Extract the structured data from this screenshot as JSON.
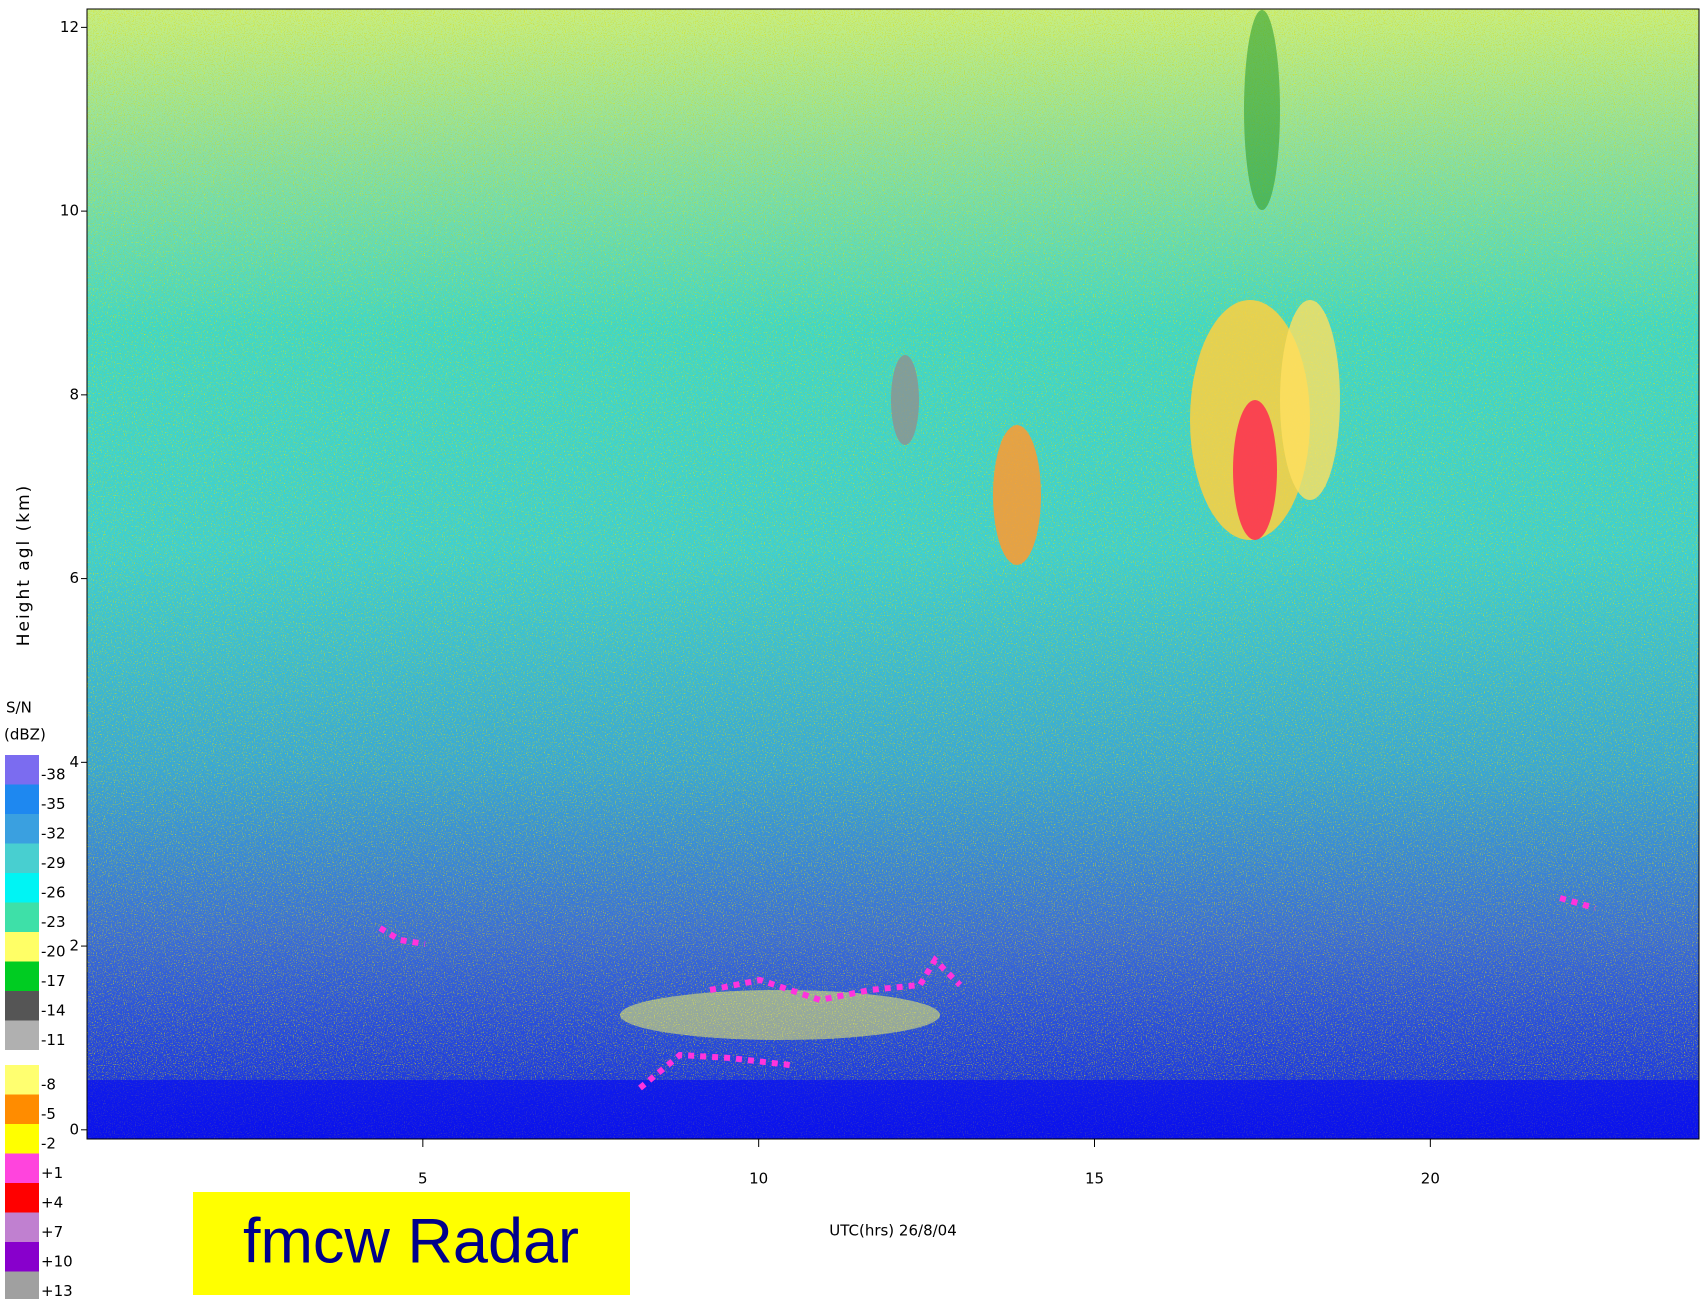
{
  "chart_data": {
    "type": "heatmap",
    "x_label": "UTC(hrs) 26/8/04",
    "y_label": "Height agl (km)",
    "annotation": "fmcw Radar",
    "xlim": [
      0,
      24
    ],
    "xticks": [
      5,
      10,
      15,
      20
    ],
    "ylim": [
      -0.1,
      12.2
    ],
    "yticks": [
      0,
      2,
      4,
      6,
      8,
      10,
      12
    ],
    "colorbar": {
      "title": [
        "S/N",
        "(dBZ)"
      ],
      "levels": [
        {
          "value": -38,
          "label": "-38",
          "color": "#7b6cf0"
        },
        {
          "value": -35,
          "label": "-35",
          "color": "#1e88f0"
        },
        {
          "value": -32,
          "label": "-32",
          "color": "#3aa0e0"
        },
        {
          "value": -29,
          "label": "-29",
          "color": "#48cfd0"
        },
        {
          "value": -26,
          "label": "-26",
          "color": "#00f4f4"
        },
        {
          "value": -23,
          "label": "-23",
          "color": "#3ee0a8"
        },
        {
          "value": -20,
          "label": "-20",
          "color": "#ffff66"
        },
        {
          "value": -17,
          "label": "-17",
          "color": "#00cc22"
        },
        {
          "value": -14,
          "label": "-14",
          "color": "#555555"
        },
        {
          "value": -11,
          "label": "-11",
          "color": "#b0b0b0"
        },
        {
          "value": -8,
          "label": "-8",
          "color": "#ffff70"
        },
        {
          "value": -5,
          "label": "-5",
          "color": "#ff8c00"
        },
        {
          "value": -2,
          "label": "-2",
          "color": "#ffff00"
        },
        {
          "value": 1,
          "label": "+1",
          "color": "#ff44dd"
        },
        {
          "value": 4,
          "label": "+4",
          "color": "#ff0000"
        },
        {
          "value": 7,
          "label": "+7",
          "color": "#c080d0"
        },
        {
          "value": 10,
          "label": "+10",
          "color": "#8800cc"
        },
        {
          "value": 13,
          "label": "+13",
          "color": "#a0a0a0"
        }
      ]
    }
  }
}
